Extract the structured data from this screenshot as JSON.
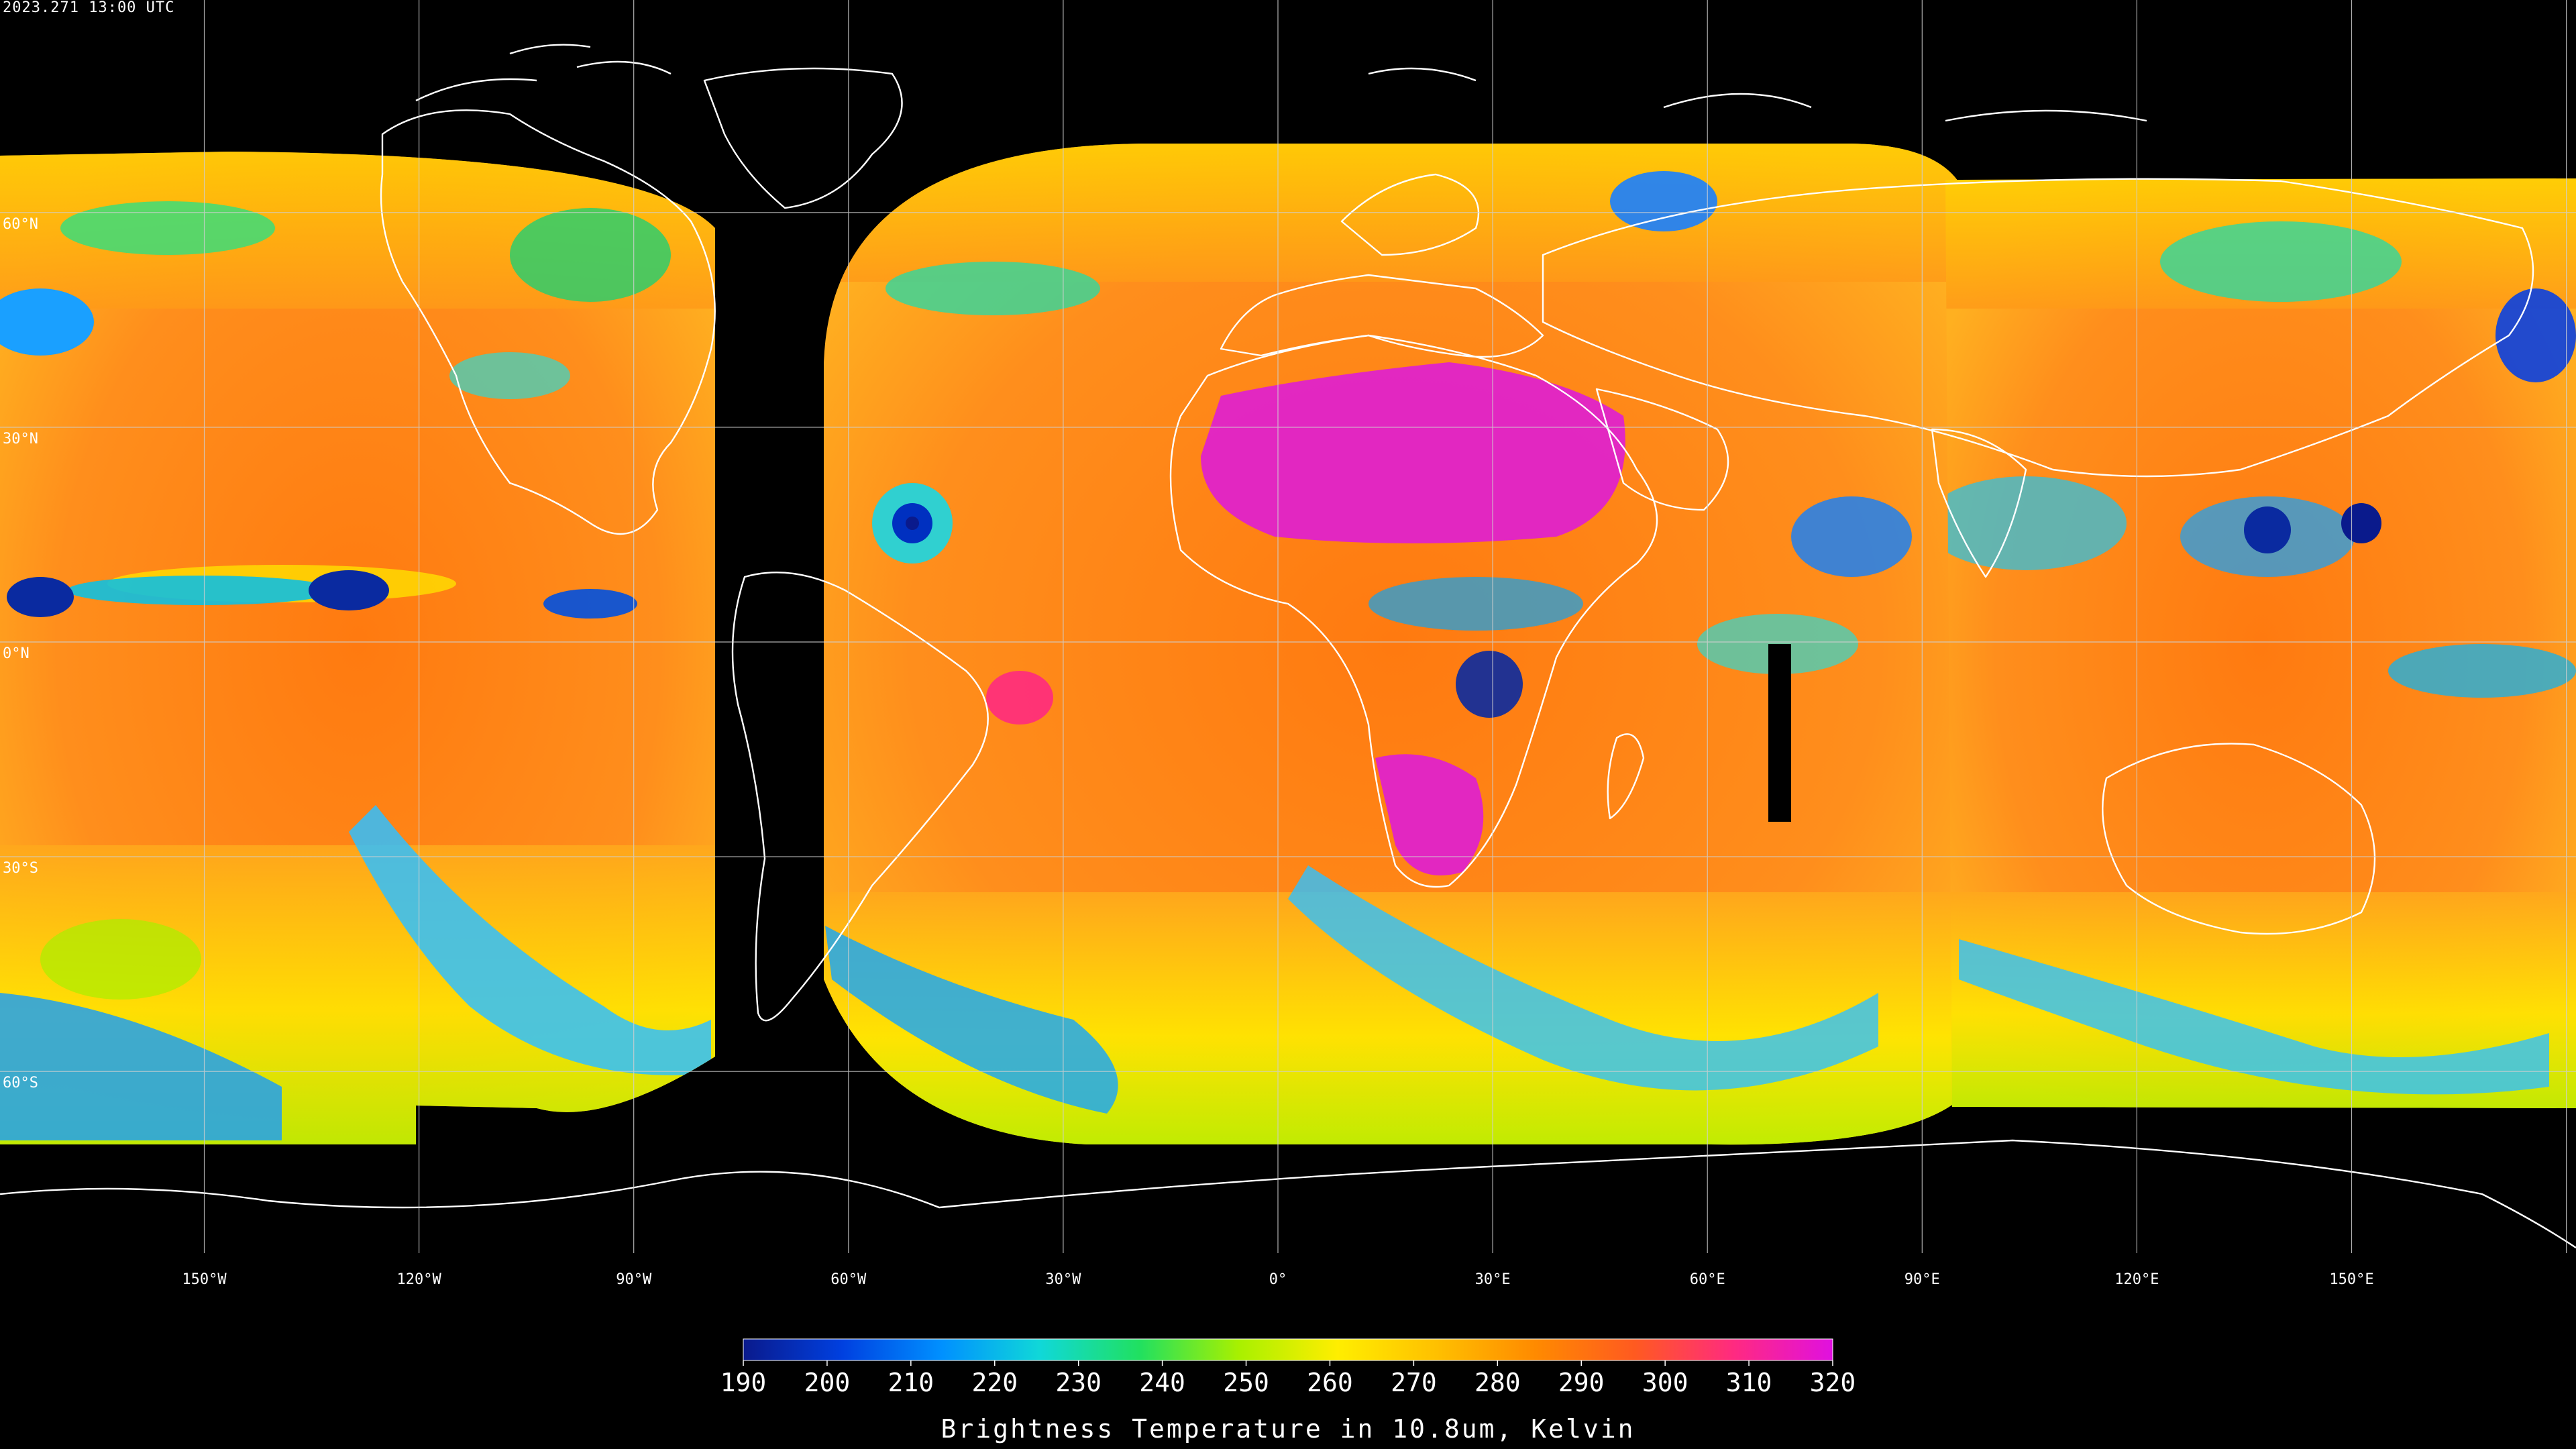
{
  "timestamp": "2023.271 13:00 UTC",
  "latitude_labels": [
    {
      "lat": 60,
      "text": "60°N"
    },
    {
      "lat": 30,
      "text": "30°N"
    },
    {
      "lat": 0,
      "text": "0°N"
    },
    {
      "lat": -30,
      "text": "30°S"
    },
    {
      "lat": -60,
      "text": "60°S"
    }
  ],
  "longitude_labels": [
    {
      "lon": -150,
      "text": "150°W"
    },
    {
      "lon": -120,
      "text": "120°W"
    },
    {
      "lon": -90,
      "text": "90°W"
    },
    {
      "lon": -60,
      "text": "60°W"
    },
    {
      "lon": -30,
      "text": "30°W"
    },
    {
      "lon": 0,
      "text": "0°"
    },
    {
      "lon": 30,
      "text": "30°E"
    },
    {
      "lon": 60,
      "text": "60°E"
    },
    {
      "lon": 90,
      "text": "90°E"
    },
    {
      "lon": 120,
      "text": "120°E"
    },
    {
      "lon": 150,
      "text": "150°E"
    }
  ],
  "colorbar": {
    "title": "Brightness Temperature in 10.8um, Kelvin",
    "min": 190,
    "max": 320,
    "ticks": [
      190,
      200,
      210,
      220,
      230,
      240,
      250,
      260,
      270,
      280,
      290,
      300,
      310,
      320
    ],
    "colors": [
      "#0a1a8c",
      "#0040e0",
      "#0090ff",
      "#10d8d8",
      "#20e060",
      "#a8f000",
      "#ffee00",
      "#ffc000",
      "#ff8a00",
      "#ff5a20",
      "#ff2a80",
      "#e010e0"
    ]
  },
  "colors": {
    "background": "#000000",
    "grid": "#cfcfcf",
    "coastline": "#ffffff",
    "warm_ocean": "#ff8c1a",
    "desert": "#e020d0"
  }
}
